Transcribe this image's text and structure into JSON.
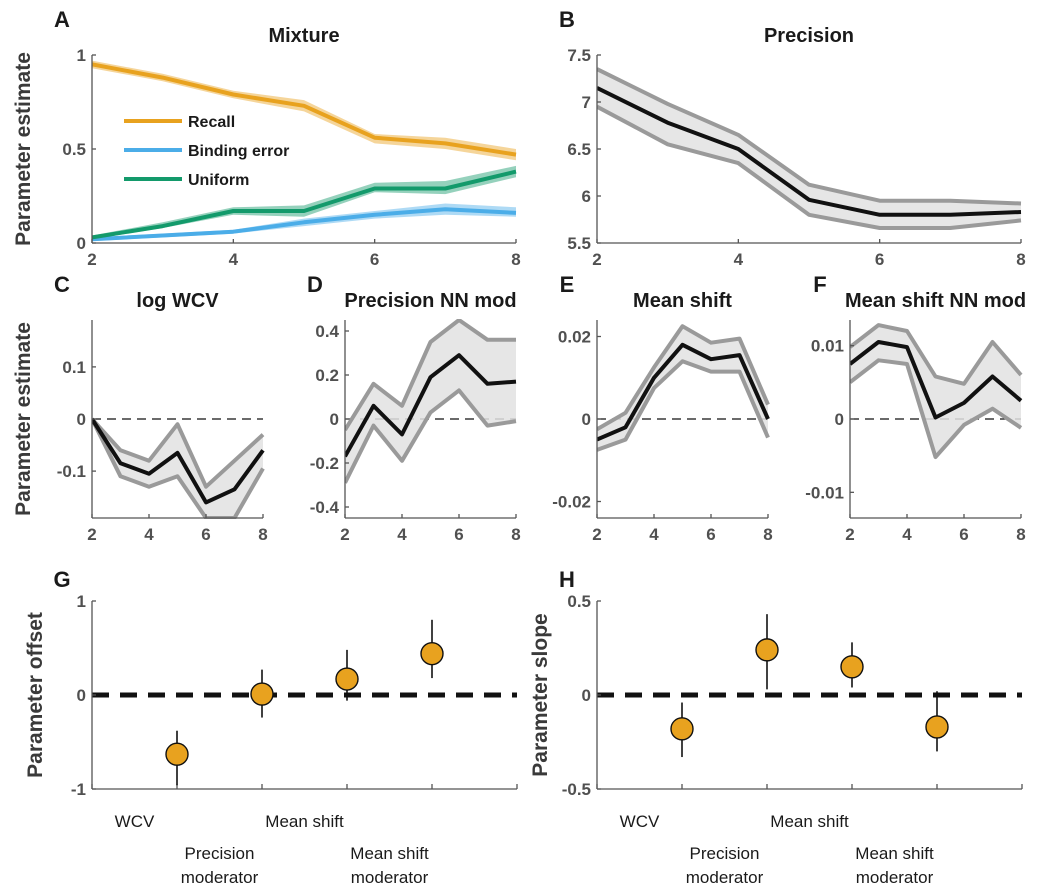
{
  "colors": {
    "recall": "#E8A21F",
    "binding": "#4BADE8",
    "uniform": "#139A6B",
    "band_gray": "#9a9a9a",
    "band_fill": "#e2e2e2",
    "mean_line": "#111111",
    "dot_fill": "#E8A21F"
  },
  "chart_data": [
    {
      "id": "A",
      "panel_label": "A",
      "type": "line",
      "title": "Mixture",
      "ylabel": "Parameter estimate",
      "xlim": [
        2,
        8
      ],
      "ylim": [
        0,
        1
      ],
      "x_ticks": [
        2,
        4,
        6,
        8
      ],
      "x_tick_labels": [
        "2",
        "4",
        "6",
        "8"
      ],
      "y_ticks": [
        0,
        0.5,
        1
      ],
      "y_tick_labels": [
        "0",
        "0.5",
        "1"
      ],
      "legend": "upper-left",
      "x": [
        2,
        3,
        4,
        5,
        6,
        7,
        8
      ],
      "series": [
        {
          "name": "Recall",
          "color": "#E8A21F",
          "values": [
            0.95,
            0.88,
            0.79,
            0.73,
            0.56,
            0.53,
            0.47
          ],
          "lower": [
            0.93,
            0.86,
            0.77,
            0.7,
            0.53,
            0.5,
            0.44
          ],
          "upper": [
            0.97,
            0.9,
            0.81,
            0.76,
            0.58,
            0.56,
            0.5
          ]
        },
        {
          "name": "Binding error",
          "color": "#4BADE8",
          "values": [
            0.02,
            0.04,
            0.06,
            0.11,
            0.15,
            0.18,
            0.16
          ],
          "lower": [
            0.01,
            0.03,
            0.05,
            0.09,
            0.13,
            0.15,
            0.14
          ],
          "upper": [
            0.03,
            0.05,
            0.07,
            0.13,
            0.17,
            0.21,
            0.19
          ]
        },
        {
          "name": "Uniform",
          "color": "#139A6B",
          "values": [
            0.03,
            0.09,
            0.17,
            0.17,
            0.29,
            0.29,
            0.38
          ],
          "lower": [
            0.02,
            0.08,
            0.15,
            0.14,
            0.27,
            0.26,
            0.35
          ],
          "upper": [
            0.04,
            0.11,
            0.19,
            0.2,
            0.32,
            0.33,
            0.41
          ]
        }
      ]
    },
    {
      "id": "B",
      "panel_label": "B",
      "type": "line",
      "title": "Precision",
      "xlim": [
        2,
        8
      ],
      "ylim": [
        5.5,
        7.5
      ],
      "x_ticks": [
        2,
        4,
        6,
        8
      ],
      "x_tick_labels": [
        "2",
        "4",
        "6",
        "8"
      ],
      "y_ticks": [
        5.5,
        6,
        6.5,
        7,
        7.5
      ],
      "y_tick_labels": [
        "5.5",
        "6",
        "6.5",
        "7",
        "7.5"
      ],
      "x": [
        2,
        3,
        4,
        5,
        6,
        7,
        8
      ],
      "values": [
        7.15,
        6.78,
        6.5,
        5.96,
        5.8,
        5.8,
        5.83
      ],
      "lower": [
        6.95,
        6.55,
        6.35,
        5.8,
        5.66,
        5.66,
        5.74
      ],
      "upper": [
        7.35,
        6.98,
        6.65,
        6.12,
        5.95,
        5.95,
        5.92
      ]
    },
    {
      "id": "C",
      "panel_label": "C",
      "type": "line",
      "title": "log WCV",
      "ylabel": "Parameter estimate",
      "xlim": [
        2,
        8
      ],
      "ylim": [
        -0.19,
        0.19
      ],
      "x_ticks": [
        2,
        4,
        6,
        8
      ],
      "x_tick_labels": [
        "2",
        "4",
        "6",
        "8"
      ],
      "y_ticks": [
        0.1,
        0,
        -0.1
      ],
      "y_tick_labels": [
        "0.1",
        "0",
        "-0.1"
      ],
      "zero_line": true,
      "x": [
        2,
        3,
        4,
        5,
        6,
        7,
        8
      ],
      "values": [
        0,
        -0.085,
        -0.105,
        -0.065,
        -0.16,
        -0.135,
        -0.06
      ],
      "lower": [
        0,
        -0.11,
        -0.13,
        -0.11,
        -0.19,
        -0.19,
        -0.095
      ],
      "upper": [
        0,
        -0.06,
        -0.08,
        -0.01,
        -0.13,
        -0.08,
        -0.03
      ]
    },
    {
      "id": "D",
      "panel_label": "D",
      "type": "line",
      "title": "Precision NN mod",
      "xlim": [
        2,
        8
      ],
      "ylim": [
        -0.45,
        0.45
      ],
      "x_ticks": [
        2,
        4,
        6,
        8
      ],
      "x_tick_labels": [
        "2",
        "4",
        "6",
        "8"
      ],
      "y_ticks": [
        0.4,
        0.2,
        0,
        -0.2,
        -0.4
      ],
      "y_tick_labels": [
        "0.4",
        "0.2",
        "0",
        "-0.2",
        "-0.4"
      ],
      "zero_line": true,
      "x": [
        2,
        3,
        4,
        5,
        6,
        7,
        8
      ],
      "values": [
        -0.17,
        0.06,
        -0.07,
        0.19,
        0.29,
        0.16,
        0.17
      ],
      "lower": [
        -0.29,
        -0.03,
        -0.19,
        0.03,
        0.13,
        -0.03,
        -0.01
      ],
      "upper": [
        -0.05,
        0.16,
        0.06,
        0.35,
        0.45,
        0.36,
        0.36
      ]
    },
    {
      "id": "E",
      "panel_label": "E",
      "type": "line",
      "title": "Mean shift",
      "xlim": [
        2,
        8
      ],
      "ylim": [
        -0.024,
        0.024
      ],
      "x_ticks": [
        2,
        4,
        6,
        8
      ],
      "x_tick_labels": [
        "2",
        "4",
        "6",
        "8"
      ],
      "y_ticks": [
        0.02,
        0,
        -0.02
      ],
      "y_tick_labels": [
        "0.02",
        "0",
        "-0.02"
      ],
      "zero_line": true,
      "x": [
        2,
        3,
        4,
        5,
        6,
        7,
        8
      ],
      "values": [
        -0.005,
        -0.002,
        0.01,
        0.018,
        0.0145,
        0.0155,
        0.0
      ],
      "lower": [
        -0.0075,
        -0.005,
        0.0075,
        0.014,
        0.0115,
        0.0115,
        -0.0045
      ],
      "upper": [
        -0.0025,
        0.0015,
        0.0125,
        0.0225,
        0.0185,
        0.0195,
        0.0035
      ]
    },
    {
      "id": "F",
      "panel_label": "F",
      "type": "line",
      "title": "Mean shift NN mod",
      "xlim": [
        2,
        8
      ],
      "ylim": [
        -0.0135,
        0.0135
      ],
      "x_ticks": [
        2,
        4,
        6,
        8
      ],
      "x_tick_labels": [
        "2",
        "4",
        "6",
        "8"
      ],
      "y_ticks": [
        0.01,
        0,
        -0.01
      ],
      "y_tick_labels": [
        "0.01",
        "0",
        "-0.01"
      ],
      "zero_line": true,
      "x": [
        2,
        3,
        4,
        5,
        6,
        7,
        8
      ],
      "values": [
        0.0075,
        0.0105,
        0.0098,
        0.0002,
        0.0022,
        0.0058,
        0.0025
      ],
      "lower": [
        0.005,
        0.008,
        0.0075,
        -0.0052,
        -0.0008,
        0.0014,
        -0.0012
      ],
      "upper": [
        0.0098,
        0.0128,
        0.012,
        0.0058,
        0.0048,
        0.0105,
        0.006
      ]
    },
    {
      "id": "G",
      "panel_label": "G",
      "type": "scatter",
      "ylabel": "Parameter offset",
      "ylim": [
        -1,
        1
      ],
      "y_ticks": [
        1,
        0,
        -1
      ],
      "y_tick_labels": [
        "1",
        "0",
        "-1"
      ],
      "zero_line": true,
      "categories": [
        "WCV",
        "Precision moderator",
        "Mean shift",
        "Mean shift moderator"
      ],
      "category_label_lines": [
        [
          "WCV"
        ],
        [
          "Precision",
          "moderator"
        ],
        [
          "Mean shift"
        ],
        [
          "Mean shift",
          "moderator"
        ]
      ],
      "values": [
        -0.63,
        0.01,
        0.17,
        0.44
      ],
      "lower": [
        -0.96,
        -0.24,
        -0.06,
        0.18
      ],
      "upper": [
        -0.38,
        0.27,
        0.48,
        0.8
      ]
    },
    {
      "id": "H",
      "panel_label": "H",
      "type": "scatter",
      "ylabel": "Parameter slope",
      "ylim": [
        -0.5,
        0.5
      ],
      "y_ticks": [
        0.5,
        0,
        -0.5
      ],
      "y_tick_labels": [
        "0.5",
        "0",
        "-0.5"
      ],
      "zero_line": true,
      "categories": [
        "WCV",
        "Precision moderator",
        "Mean shift",
        "Mean shift moderator"
      ],
      "category_label_lines": [
        [
          "WCV"
        ],
        [
          "Precision",
          "moderator"
        ],
        [
          "Mean shift"
        ],
        [
          "Mean shift",
          "moderator"
        ]
      ],
      "values": [
        -0.18,
        0.24,
        0.15,
        -0.17
      ],
      "lower": [
        -0.33,
        0.03,
        0.04,
        -0.3
      ],
      "upper": [
        -0.04,
        0.43,
        0.28,
        0.02
      ]
    }
  ]
}
